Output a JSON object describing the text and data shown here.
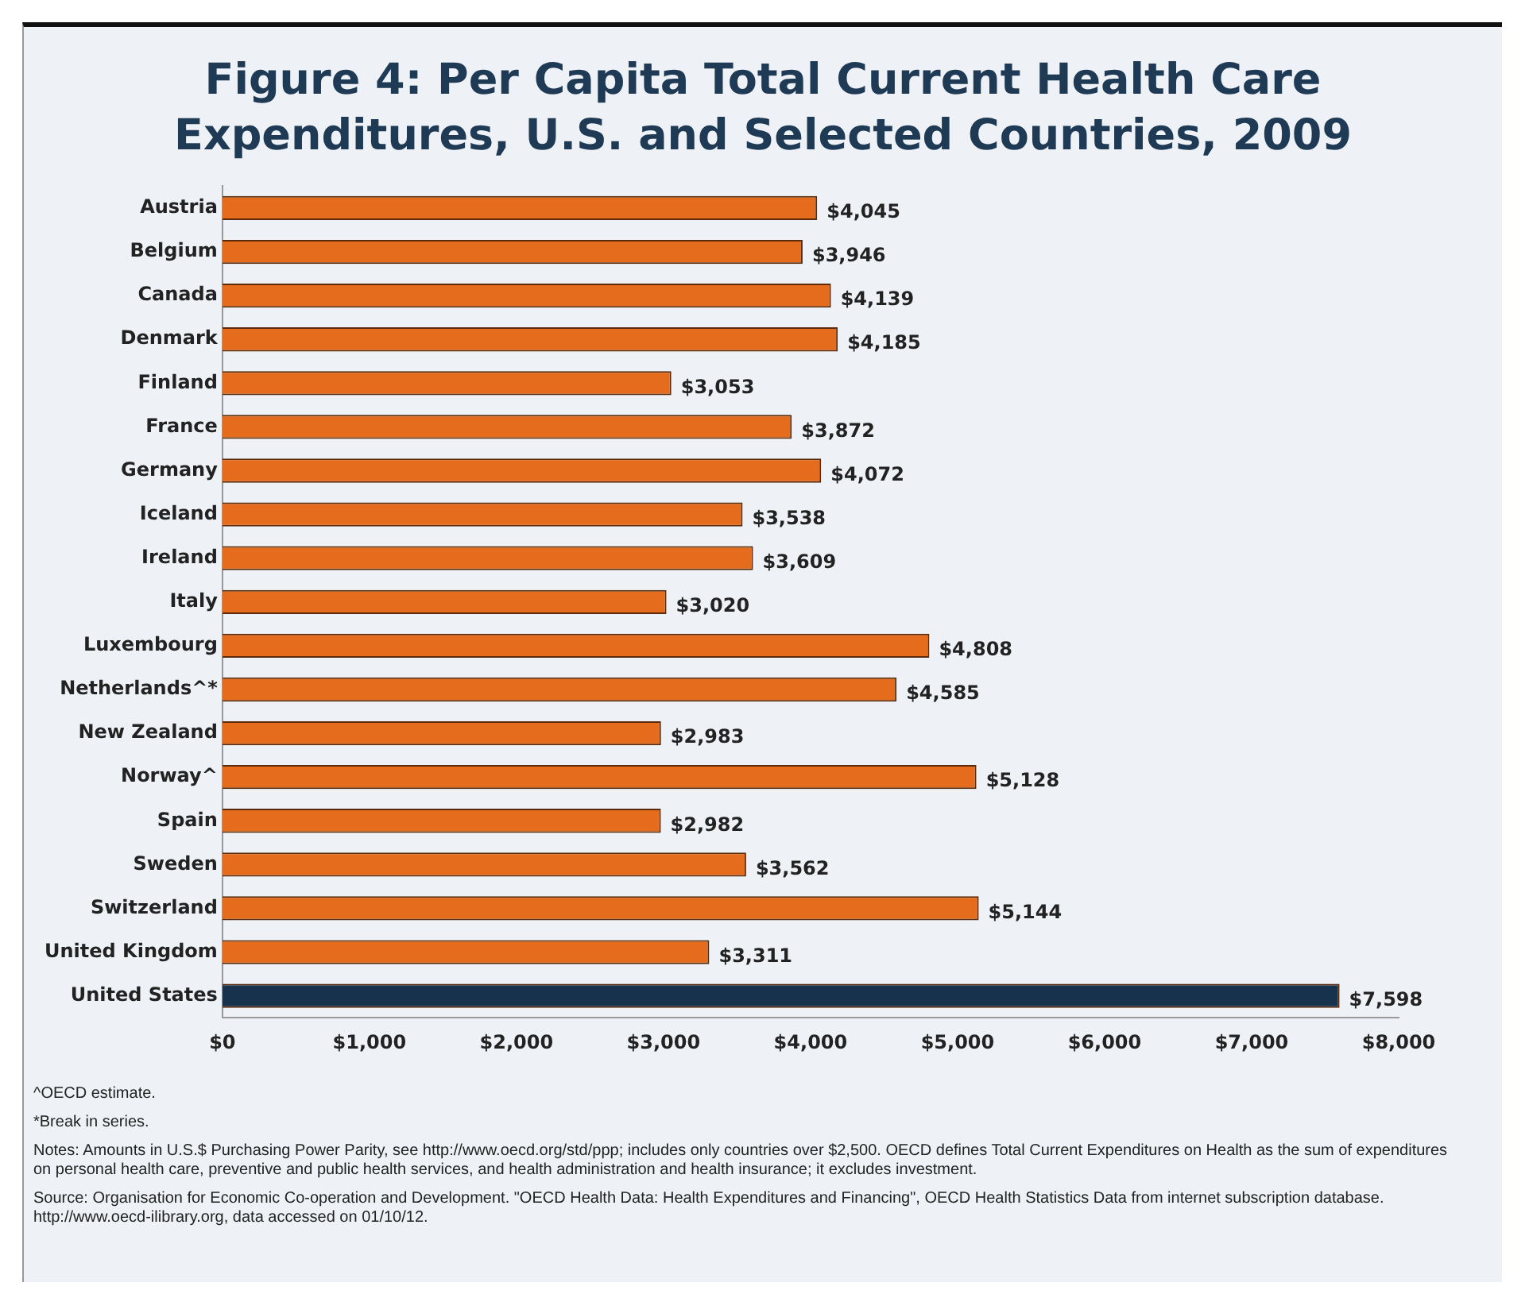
{
  "chart_data": {
    "type": "bar",
    "orientation": "horizontal",
    "title": "Figure 4: Per Capita Total Current Health Care Expenditures, U.S. and Selected Countries, 2009",
    "categories": [
      "Austria",
      "Belgium",
      "Canada",
      "Denmark",
      "Finland",
      "France",
      "Germany",
      "Iceland",
      "Ireland",
      "Italy",
      "Luxembourg",
      "Netherlands^*",
      "New Zealand",
      "Norway^",
      "Spain",
      "Sweden",
      "Switzerland",
      "United Kingdom",
      "United States"
    ],
    "values": [
      4045,
      3946,
      4139,
      4185,
      3053,
      3872,
      4072,
      3538,
      3609,
      3020,
      4808,
      4585,
      2983,
      5128,
      2982,
      3562,
      5144,
      3311,
      7598
    ],
    "colors": [
      "#e46c1c",
      "#e46c1c",
      "#e46c1c",
      "#e46c1c",
      "#e46c1c",
      "#e46c1c",
      "#e46c1c",
      "#e46c1c",
      "#e46c1c",
      "#e46c1c",
      "#e46c1c",
      "#e46c1c",
      "#e46c1c",
      "#e46c1c",
      "#e46c1c",
      "#e46c1c",
      "#e46c1c",
      "#e46c1c",
      "#17324d"
    ],
    "value_labels": [
      "$4,045",
      "$3,946",
      "$4,139",
      "$4,185",
      "$3,053",
      "$3,872",
      "$4,072",
      "$3,538",
      "$3,609",
      "$3,020",
      "$4,808",
      "$4,585",
      "$2,983",
      "$5,128",
      "$2,982",
      "$3,562",
      "$5,144",
      "$3,311",
      "$7,598"
    ],
    "xlim": [
      0,
      8000
    ],
    "xticks": [
      {
        "value": 0,
        "label": "$0"
      },
      {
        "value": 1000,
        "label": "$1,000"
      },
      {
        "value": 2000,
        "label": "$2,000"
      },
      {
        "value": 3000,
        "label": "$3,000"
      },
      {
        "value": 4000,
        "label": "$4,000"
      },
      {
        "value": 5000,
        "label": "$5,000"
      },
      {
        "value": 6000,
        "label": "$6,000"
      },
      {
        "value": 7000,
        "label": "$7,000"
      },
      {
        "value": 8000,
        "label": "$8,000"
      }
    ],
    "grid": false,
    "legend": false,
    "annotations": [
      "^OECD estimate.",
      "*Break in series.",
      "Notes: Amounts in U.S.$ Purchasing Power Parity, see http://www.oecd.org/std/ppp; includes only countries over $2,500. OECD defines Total Current Expenditures on Health as the sum of expenditures on personal health care, preventive and public health services, and health administration and health insurance; it excludes investment.",
      "Source: Organisation for Economic Co-operation and Development. \"OECD Health Data: Health Expenditures and Financing\", OECD Health Statistics Data from internet subscription database. http://www.oecd-ilibrary.org, data accessed on 01/10/12."
    ]
  }
}
